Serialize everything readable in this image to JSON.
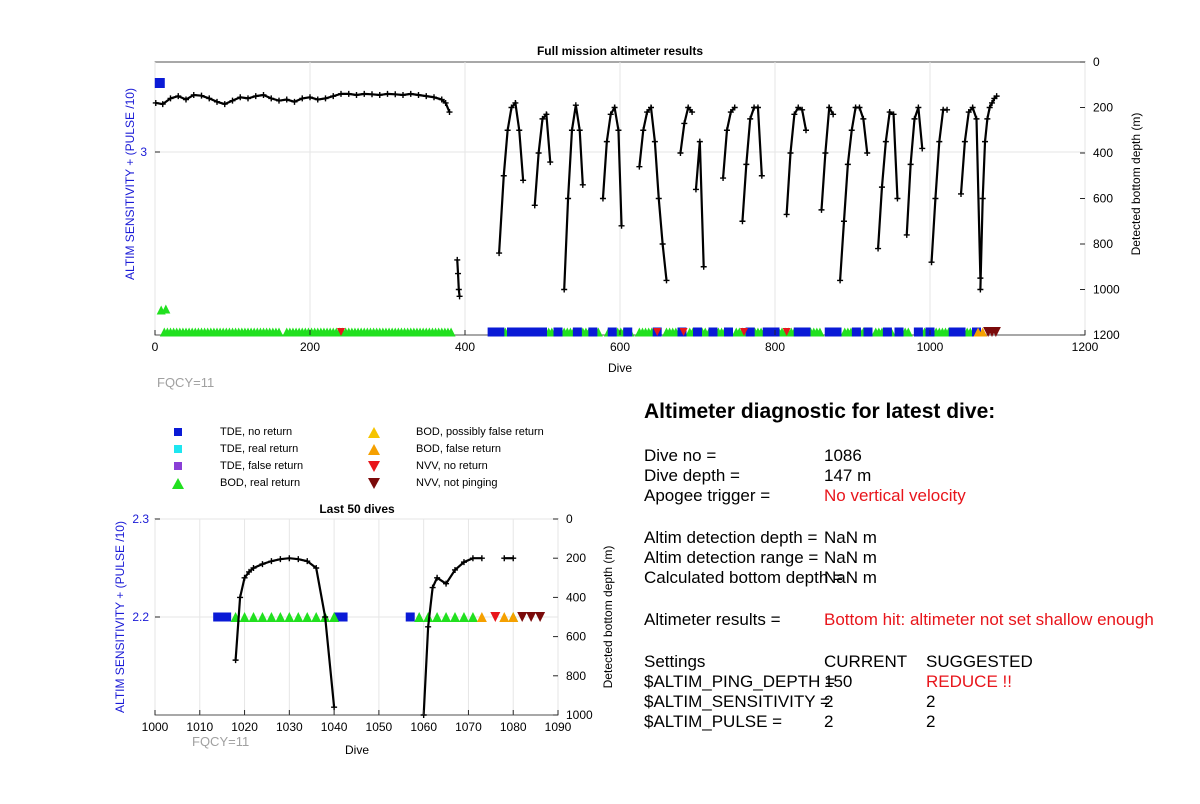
{
  "chart_data": [
    {
      "type": "scatter",
      "title": "Full mission altimeter results",
      "xlabel": "Dive",
      "ylabel_left": "ALTIM SENSITIVITY + (PULSE /10)",
      "ylabel_right": "Detected bottom depth (m)",
      "xlim": [
        0,
        1200
      ],
      "xticks": [
        "0",
        "200",
        "400",
        "600",
        "800",
        "1000",
        "1200"
      ],
      "yleft_ticks": [
        "3"
      ],
      "yright_ticks": [
        "0",
        "200",
        "400",
        "600",
        "800",
        "1000",
        "1200"
      ],
      "yright_lim": [
        0,
        1200
      ],
      "annotation": "FQCY=11",
      "series": [
        {
          "name": "Detected bottom depth",
          "segments": [
            {
              "x": [
                1,
                10,
                20,
                30,
                40,
                50,
                60,
                70,
                80,
                90,
                100,
                110,
                120,
                130,
                140,
                150,
                160,
                170,
                180,
                190,
                200,
                210,
                220,
                230,
                240,
                250,
                260,
                270,
                280,
                290,
                300,
                310,
                320,
                330,
                340,
                350,
                360,
                370,
                375,
                380
              ],
              "y": [
                180,
                185,
                160,
                150,
                165,
                145,
                148,
                160,
                175,
                185,
                170,
                155,
                160,
                150,
                145,
                160,
                170,
                165,
                175,
                160,
                155,
                165,
                160,
                150,
                140,
                140,
                145,
                140,
                142,
                145,
                140,
                142,
                145,
                140,
                145,
                150,
                155,
                165,
                180,
                220
              ]
            },
            {
              "x": [
                390,
                391,
                392,
                393
              ],
              "y": [
                870,
                930,
                1000,
                1030
              ]
            },
            {
              "x": [
                444,
                450,
                455,
                460,
                465,
                470,
                475
              ],
              "y": [
                840,
                500,
                300,
                200,
                180,
                300,
                520
              ]
            },
            {
              "x": [
                490,
                495,
                500,
                505,
                510
              ],
              "y": [
                630,
                400,
                250,
                230,
                440
              ]
            },
            {
              "x": [
                528,
                533,
                538,
                543,
                548,
                552
              ],
              "y": [
                1000,
                600,
                300,
                190,
                300,
                540
              ]
            },
            {
              "x": [
                578,
                583,
                588,
                593,
                598,
                602
              ],
              "y": [
                600,
                350,
                230,
                200,
                300,
                720
              ]
            },
            {
              "x": [
                625,
                630,
                635,
                640,
                645,
                650,
                655,
                660
              ],
              "y": [
                460,
                300,
                220,
                200,
                350,
                600,
                800,
                960
              ]
            },
            {
              "x": [
                678,
                683,
                688,
                693
              ],
              "y": [
                400,
                270,
                200,
                220
              ]
            },
            {
              "x": [
                698,
                703,
                708
              ],
              "y": [
                560,
                350,
                900
              ]
            },
            {
              "x": [
                733,
                738,
                743,
                748
              ],
              "y": [
                510,
                300,
                220,
                200
              ]
            },
            {
              "x": [
                758,
                763,
                768,
                773,
                778,
                783
              ],
              "y": [
                700,
                450,
                250,
                200,
                200,
                500
              ]
            },
            {
              "x": [
                815,
                820,
                825,
                830,
                835,
                840
              ],
              "y": [
                670,
                400,
                230,
                200,
                210,
                300
              ]
            },
            {
              "x": [
                860,
                865,
                870,
                875
              ],
              "y": [
                650,
                400,
                200,
                230
              ]
            },
            {
              "x": [
                884,
                889,
                894,
                899,
                904,
                909,
                914,
                919
              ],
              "y": [
                960,
                700,
                450,
                300,
                200,
                200,
                250,
                400
              ]
            },
            {
              "x": [
                933,
                938,
                943,
                948,
                953,
                958
              ],
              "y": [
                820,
                550,
                350,
                220,
                230,
                600
              ]
            },
            {
              "x": [
                970,
                975,
                980,
                985,
                990
              ],
              "y": [
                760,
                450,
                250,
                200,
                380
              ]
            },
            {
              "x": [
                1002,
                1007,
                1012,
                1017,
                1022
              ],
              "y": [
                880,
                600,
                350,
                210,
                210
              ]
            },
            {
              "x": [
                1040,
                1045,
                1050,
                1055,
                1060,
                1065
              ],
              "y": [
                580,
                350,
                220,
                200,
                250,
                950
              ]
            },
            {
              "x": [
                1065,
                1068,
                1071,
                1074,
                1077,
                1080,
                1083,
                1086
              ],
              "y": [
                1000,
                600,
                350,
                250,
                200,
                180,
                160,
                150
              ]
            }
          ]
        },
        {
          "name": "TDE, no return",
          "x": [
            1,
            435,
            445,
            460,
            470,
            480,
            490,
            500,
            520,
            545,
            565,
            590,
            610,
            648,
            680,
            700,
            720,
            740,
            768,
            790,
            800,
            830,
            840,
            870,
            880,
            905,
            920,
            945,
            960,
            985,
            1000,
            1030,
            1040,
            1060
          ],
          "yleft": [
            3.1,
            2.2,
            2.2,
            2.2,
            2.2,
            2.2,
            2.2,
            2.2,
            2.2,
            2.2,
            2.2,
            2.2,
            2.2,
            2.2,
            2.2,
            2.2,
            2.2,
            2.2,
            2.2,
            2.2,
            2.2,
            2.2,
            2.2,
            2.2,
            2.2,
            2.2,
            2.2,
            2.2,
            2.2,
            2.2,
            2.2,
            2.2,
            2.2,
            2.2
          ]
        },
        {
          "name": "BOD, real return",
          "note": "dense band at sensitivity 2.2 across dives ~10-390 and ~440-1080, plus marker at dive ~10 at 2.3"
        }
      ]
    },
    {
      "type": "scatter",
      "title": "Last 50 dives",
      "xlabel": "Dive",
      "ylabel_left": "ALTIM SENSITIVITY + (PULSE /10)",
      "ylabel_right": "Detected bottom depth (m)",
      "xlim": [
        1000,
        1090
      ],
      "xticks": [
        "1000",
        "1010",
        "1020",
        "1030",
        "1040",
        "1050",
        "1060",
        "1070",
        "1080",
        "1090"
      ],
      "yleft_lim": [
        2.1,
        2.3
      ],
      "yleft_ticks": [
        "2.3",
        "2.2"
      ],
      "yright_lim": [
        0,
        1000
      ],
      "yright_ticks": [
        "0",
        "200",
        "400",
        "600",
        "800",
        "1000"
      ],
      "annotation": "FQCY=11",
      "series": [
        {
          "name": "Detected bottom depth",
          "segments": [
            {
              "x": [
                1018,
                1019,
                1020,
                1021,
                1022,
                1024,
                1026,
                1028,
                1030,
                1032,
                1034,
                1036,
                1038,
                1040
              ],
              "y": [
                720,
                400,
                300,
                270,
                250,
                230,
                215,
                205,
                200,
                205,
                215,
                250,
                500,
                960
              ]
            },
            {
              "x": [
                1060,
                1061,
                1062,
                1063,
                1065,
                1067,
                1069,
                1071,
                1073
              ],
              "y": [
                1000,
                550,
                350,
                300,
                330,
                260,
                220,
                200,
                200
              ]
            },
            {
              "x": [
                1078,
                1080
              ],
              "y": [
                200,
                200
              ]
            }
          ]
        },
        {
          "name": "TDE, no return",
          "x": [
            1014,
            1015,
            1016,
            1041,
            1042,
            1057
          ],
          "y": [
            2.2,
            2.2,
            2.2,
            2.2,
            2.2,
            2.2
          ]
        },
        {
          "name": "BOD, real return",
          "x": [
            1018,
            1020,
            1022,
            1024,
            1026,
            1028,
            1030,
            1032,
            1034,
            1036,
            1038,
            1040,
            1059,
            1061,
            1063,
            1065,
            1067,
            1069,
            1071,
            1080
          ],
          "y": [
            2.2,
            2.2,
            2.2,
            2.2,
            2.2,
            2.2,
            2.2,
            2.2,
            2.2,
            2.2,
            2.2,
            2.2,
            2.2,
            2.2,
            2.2,
            2.2,
            2.2,
            2.2,
            2.2,
            2.2
          ]
        },
        {
          "name": "BOD, false return",
          "x": [
            1073,
            1078,
            1080
          ],
          "y": [
            2.2,
            2.2,
            2.2
          ]
        },
        {
          "name": "NVV, no return",
          "x": [
            1076
          ],
          "y": [
            2.2
          ]
        },
        {
          "name": "NVV, not pinging",
          "x": [
            1082,
            1084,
            1086
          ],
          "y": [
            2.2,
            2.2,
            2.2
          ]
        }
      ]
    }
  ],
  "legend": {
    "items": [
      {
        "label": "TDE, no return",
        "marker": "square",
        "color": "#0a1ad6"
      },
      {
        "label": "TDE, real return",
        "marker": "square",
        "color": "#1ee6f0"
      },
      {
        "label": "TDE, false return",
        "marker": "square",
        "color": "#8a3fd6"
      },
      {
        "label": "BOD, real return",
        "marker": "triangle-up",
        "color": "#21e01f"
      },
      {
        "label": "BOD, possibly false return",
        "marker": "triangle-up",
        "color": "#f5c400"
      },
      {
        "label": "BOD, false return",
        "marker": "triangle-up",
        "color": "#f5a000"
      },
      {
        "label": "NVV, no return",
        "marker": "triangle-down",
        "color": "#e8151b"
      },
      {
        "label": "NVV, not pinging",
        "marker": "triangle-down",
        "color": "#7a0a0a"
      }
    ]
  },
  "diagnostic": {
    "title": "Altimeter diagnostic for latest dive:",
    "dive_no_label": "Dive no =",
    "dive_no_value": "1086",
    "dive_depth_label": "Dive depth =",
    "dive_depth_value": "147 m",
    "apogee_label": "Apogee trigger =",
    "apogee_value": "No vertical velocity",
    "detection_depth_label": "Altim detection depth =",
    "detection_depth_value": "NaN m",
    "detection_range_label": "Altim detection range =",
    "detection_range_value": "NaN m",
    "bottom_depth_label": "Calculated bottom depth =",
    "bottom_depth_value": "NaN m",
    "results_label": "Altimeter results =",
    "results_value": "Bottom hit: altimeter not set shallow enough",
    "settings_label": "Settings",
    "current_label": "CURRENT",
    "suggested_label": "SUGGESTED",
    "ping_depth_label": "$ALTIM_PING_DEPTH =",
    "ping_depth_current": "150",
    "ping_depth_suggested": "REDUCE !!",
    "sensitivity_label": "$ALTIM_SENSITIVITY =",
    "sensitivity_current": "2",
    "sensitivity_suggested": "2",
    "pulse_label": "$ALTIM_PULSE =",
    "pulse_current": "2",
    "pulse_suggested": "2"
  },
  "colors": {
    "axis_left": "#1a1ad6",
    "line": "#000000",
    "grid": "#e6e6e6",
    "annotation": "#a0a0a0",
    "alert": "#e8151b"
  }
}
